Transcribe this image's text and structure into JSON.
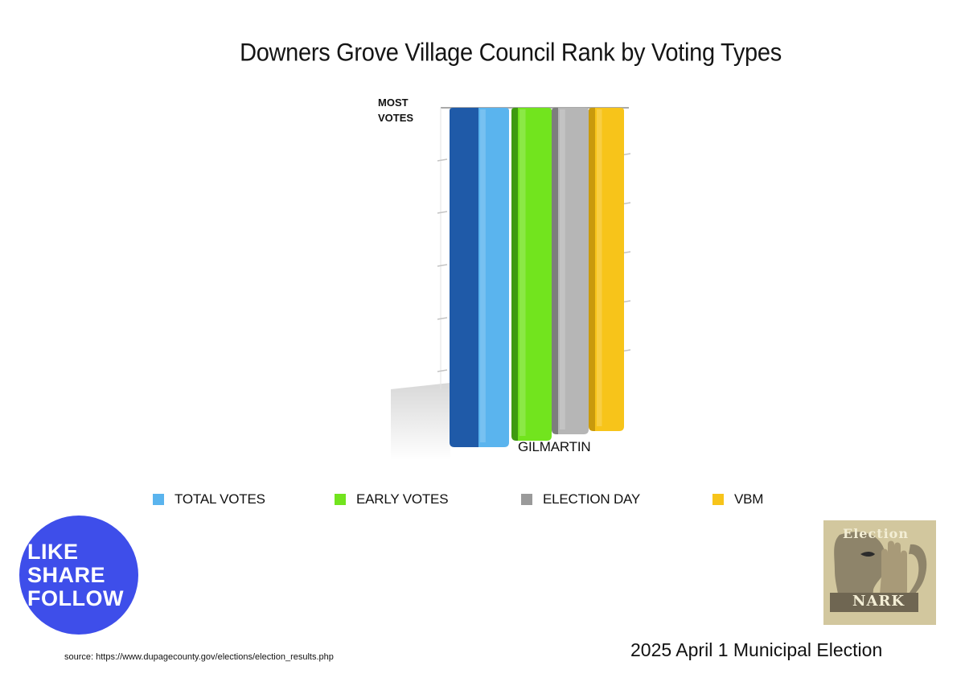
{
  "chart_data": {
    "type": "bar",
    "title": "Downers Grove Village Council Rank by Voting Types",
    "ylabel_top": [
      "MOST",
      "VOTES"
    ],
    "categories": [
      "GILMARTIN"
    ],
    "series": [
      {
        "name": "TOTAL VOTES",
        "values": [
          1
        ],
        "color": "#5ab4ee",
        "side_color": "#1f5aa8"
      },
      {
        "name": "EARLY VOTES",
        "values": [
          1
        ],
        "color": "#72e41e",
        "side_color": "#3e9a10"
      },
      {
        "name": "ELECTION DAY",
        "values": [
          1
        ],
        "color": "#b6b6b6",
        "side_color": "#7d7d7d"
      },
      {
        "name": "VBM",
        "values": [
          1
        ],
        "color": "#f7c41a",
        "side_color": "#c99a0c"
      }
    ],
    "ylim": [
      0,
      1
    ],
    "legend_position": "bottom"
  },
  "badge": {
    "lines": [
      "LIKE",
      "SHARE",
      "FOLLOW"
    ]
  },
  "logo": {
    "top_text": "Election",
    "bottom_text": "NARK"
  },
  "footer": {
    "election": "2025 April 1 Municipal Election",
    "source": "source: https://www.dupagecounty.gov/elections/election_results.php"
  }
}
